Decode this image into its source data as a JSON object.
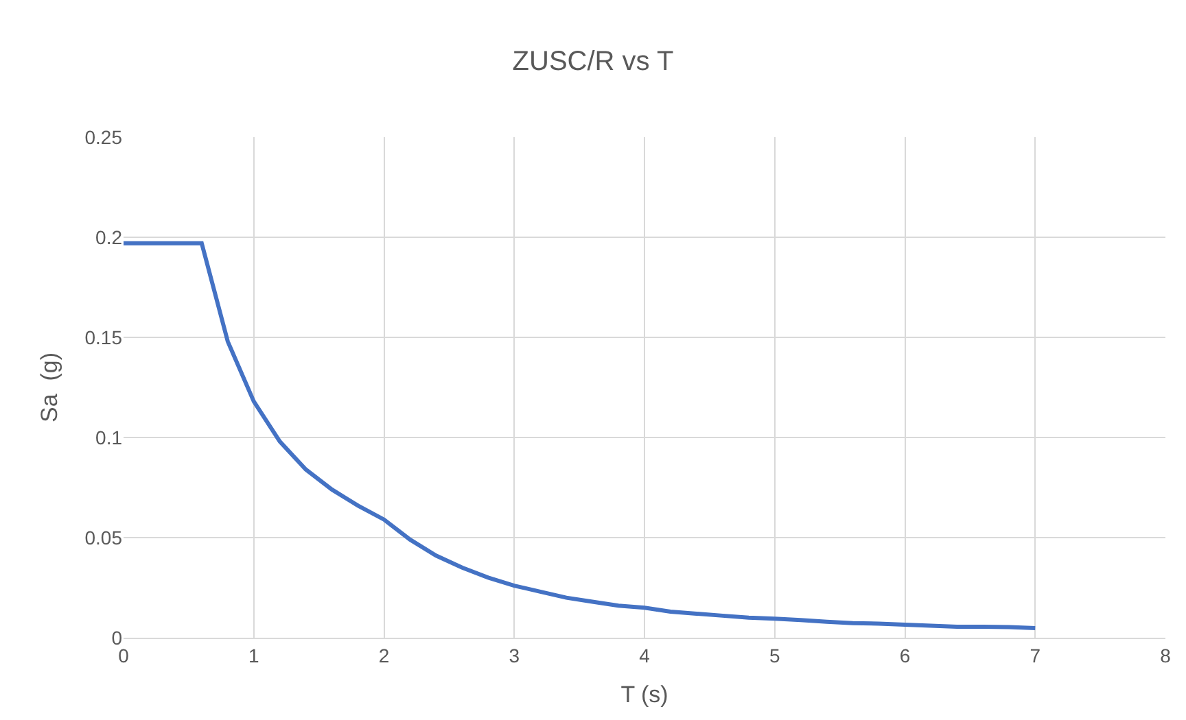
{
  "chart_data": {
    "type": "line",
    "title": "ZUSC/R vs T",
    "xlabel": "T (s)",
    "ylabel": "Sa  (g)",
    "x": [
      0,
      0.2,
      0.4,
      0.6,
      0.8,
      1.0,
      1.2,
      1.4,
      1.6,
      1.8,
      2.0,
      2.2,
      2.4,
      2.6,
      2.8,
      3.0,
      3.2,
      3.4,
      3.6,
      3.8,
      4.0,
      4.2,
      4.4,
      4.6,
      4.8,
      5.0,
      5.2,
      5.4,
      5.6,
      5.8,
      6.0,
      6.2,
      6.4,
      6.6,
      6.8,
      7.0
    ],
    "series": [
      {
        "color": "#4472c4",
        "values": [
          0.197,
          0.197,
          0.197,
          0.197,
          0.148,
          0.118,
          0.098,
          0.084,
          0.074,
          0.066,
          0.059,
          0.049,
          0.041,
          0.035,
          0.03,
          0.026,
          0.023,
          0.02,
          0.018,
          0.016,
          0.015,
          0.013,
          0.012,
          0.011,
          0.01,
          0.0095,
          0.0088,
          0.008,
          0.0073,
          0.007,
          0.0065,
          0.006,
          0.0055,
          0.0055,
          0.0053,
          0.0048
        ]
      }
    ],
    "xlim": [
      0,
      8
    ],
    "xticks": [
      0,
      1,
      2,
      3,
      4,
      5,
      6,
      7,
      8
    ],
    "ylim": [
      0,
      0.25
    ],
    "yticks": [
      0,
      0.05,
      0.1,
      0.15,
      0.2,
      0.25
    ],
    "grid": true,
    "legend": false,
    "marker": "none",
    "line_style": "solid"
  }
}
